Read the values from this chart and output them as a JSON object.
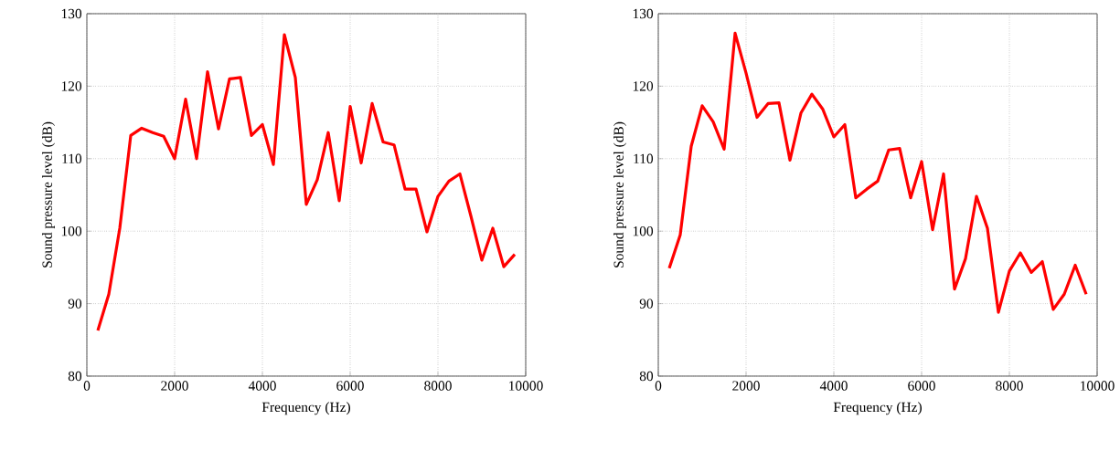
{
  "chart_data": [
    {
      "type": "line",
      "xlabel": "Frequency (Hz)",
      "ylabel": "Sound pressure level (dB)",
      "color": "#ff0000",
      "xlim": [
        0,
        10000
      ],
      "ylim": [
        80,
        130
      ],
      "xticks": [
        0,
        2000,
        4000,
        6000,
        8000,
        10000
      ],
      "yticks": [
        80,
        90,
        100,
        110,
        120,
        130
      ],
      "grid": true,
      "marker": "none",
      "line_style": "solid",
      "x": [
        250,
        500,
        750,
        1000,
        1250,
        1500,
        1750,
        2000,
        2250,
        2500,
        2750,
        3000,
        3250,
        3500,
        3750,
        4000,
        4250,
        4500,
        4750,
        5000,
        5250,
        5500,
        5750,
        6000,
        6250,
        6500,
        6750,
        7000,
        7250,
        7500,
        7750,
        8000,
        8250,
        8500,
        8750,
        9000,
        9250,
        9500,
        9750
      ],
      "values": [
        86.3,
        91.3,
        100.4,
        113.2,
        114.2,
        113.6,
        113.1,
        110.0,
        118.2,
        110.0,
        122.0,
        114.1,
        121.0,
        121.2,
        113.2,
        114.7,
        109.2,
        127.1,
        121.2,
        103.7,
        107.1,
        113.6,
        104.2,
        117.2,
        109.4,
        117.6,
        112.3,
        111.9,
        105.8,
        105.8,
        99.9,
        104.8,
        106.9,
        107.9,
        102.1,
        96.0,
        100.4,
        95.1,
        96.8
      ]
    },
    {
      "type": "line",
      "xlabel": "Frequency (Hz)",
      "ylabel": "Sound pressure level (dB)",
      "color": "#ff0000",
      "xlim": [
        0,
        10000
      ],
      "ylim": [
        80,
        130
      ],
      "xticks": [
        0,
        2000,
        4000,
        6000,
        8000,
        10000
      ],
      "yticks": [
        80,
        90,
        100,
        110,
        120,
        130
      ],
      "grid": true,
      "marker": "none",
      "line_style": "solid",
      "x": [
        250,
        500,
        750,
        1000,
        1250,
        1500,
        1750,
        2000,
        2250,
        2500,
        2750,
        3000,
        3250,
        3500,
        3750,
        4000,
        4250,
        4500,
        4750,
        5000,
        5250,
        5500,
        5750,
        6000,
        6250,
        6500,
        6750,
        7000,
        7250,
        7500,
        7750,
        8000,
        8250,
        8500,
        8750,
        9000,
        9250,
        9500,
        9750
      ],
      "values": [
        94.9,
        99.5,
        111.7,
        117.3,
        115.1,
        111.3,
        127.3,
        121.8,
        115.7,
        117.6,
        117.7,
        109.8,
        116.3,
        118.9,
        116.8,
        113.0,
        114.7,
        104.6,
        105.8,
        106.9,
        111.2,
        111.4,
        104.6,
        109.6,
        100.2,
        107.9,
        92.0,
        96.2,
        104.8,
        100.4,
        88.8,
        94.5,
        97.0,
        94.3,
        95.8,
        89.2,
        91.3,
        95.3,
        91.3
      ]
    }
  ]
}
